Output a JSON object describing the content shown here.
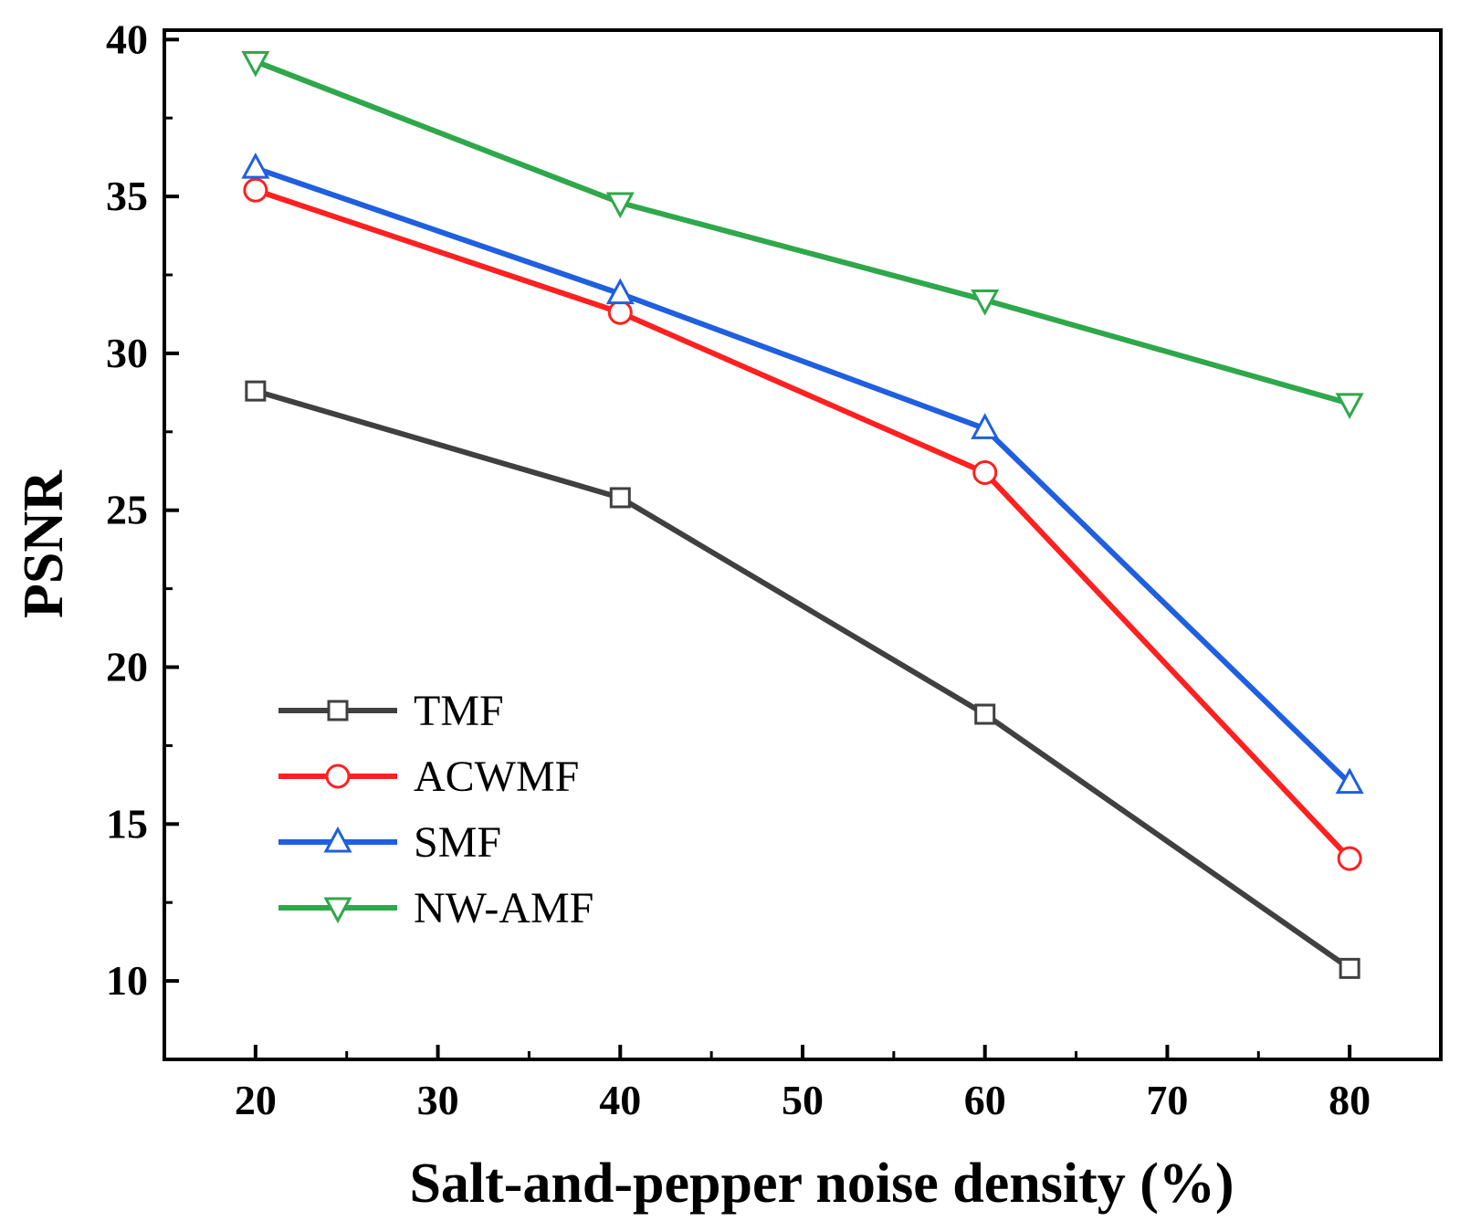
{
  "chart_data": {
    "type": "line",
    "title": "",
    "xlabel": "Salt-and-pepper noise density (%)",
    "ylabel": "PSNR",
    "xlim": [
      15,
      85
    ],
    "ylim": [
      7.5,
      40.3
    ],
    "xticks": [
      20,
      30,
      40,
      50,
      60,
      70,
      80
    ],
    "xtick_labels": [
      "20",
      "30",
      "40",
      "50",
      "60",
      "70",
      "80"
    ],
    "yticks": [
      10,
      15,
      20,
      25,
      30,
      35,
      40
    ],
    "ytick_labels": [
      "10",
      "15",
      "20",
      "25",
      "30",
      "35",
      "40"
    ],
    "grid": false,
    "legend_position": "lower-left",
    "x": [
      20,
      40,
      60,
      80
    ],
    "series": [
      {
        "name": "TMF",
        "values": [
          28.8,
          25.4,
          18.5,
          10.4
        ],
        "color": "#404040",
        "marker": "square"
      },
      {
        "name": "ACWMF",
        "values": [
          35.2,
          31.3,
          26.2,
          13.9
        ],
        "color": "#ff2020",
        "marker": "circle"
      },
      {
        "name": "SMF",
        "values": [
          35.9,
          31.9,
          27.6,
          16.3
        ],
        "color": "#1f5fe0",
        "marker": "triangle-up"
      },
      {
        "name": "NW-AMF",
        "values": [
          39.3,
          34.8,
          31.7,
          28.4
        ],
        "color": "#2ea84a",
        "marker": "triangle-down"
      }
    ]
  }
}
